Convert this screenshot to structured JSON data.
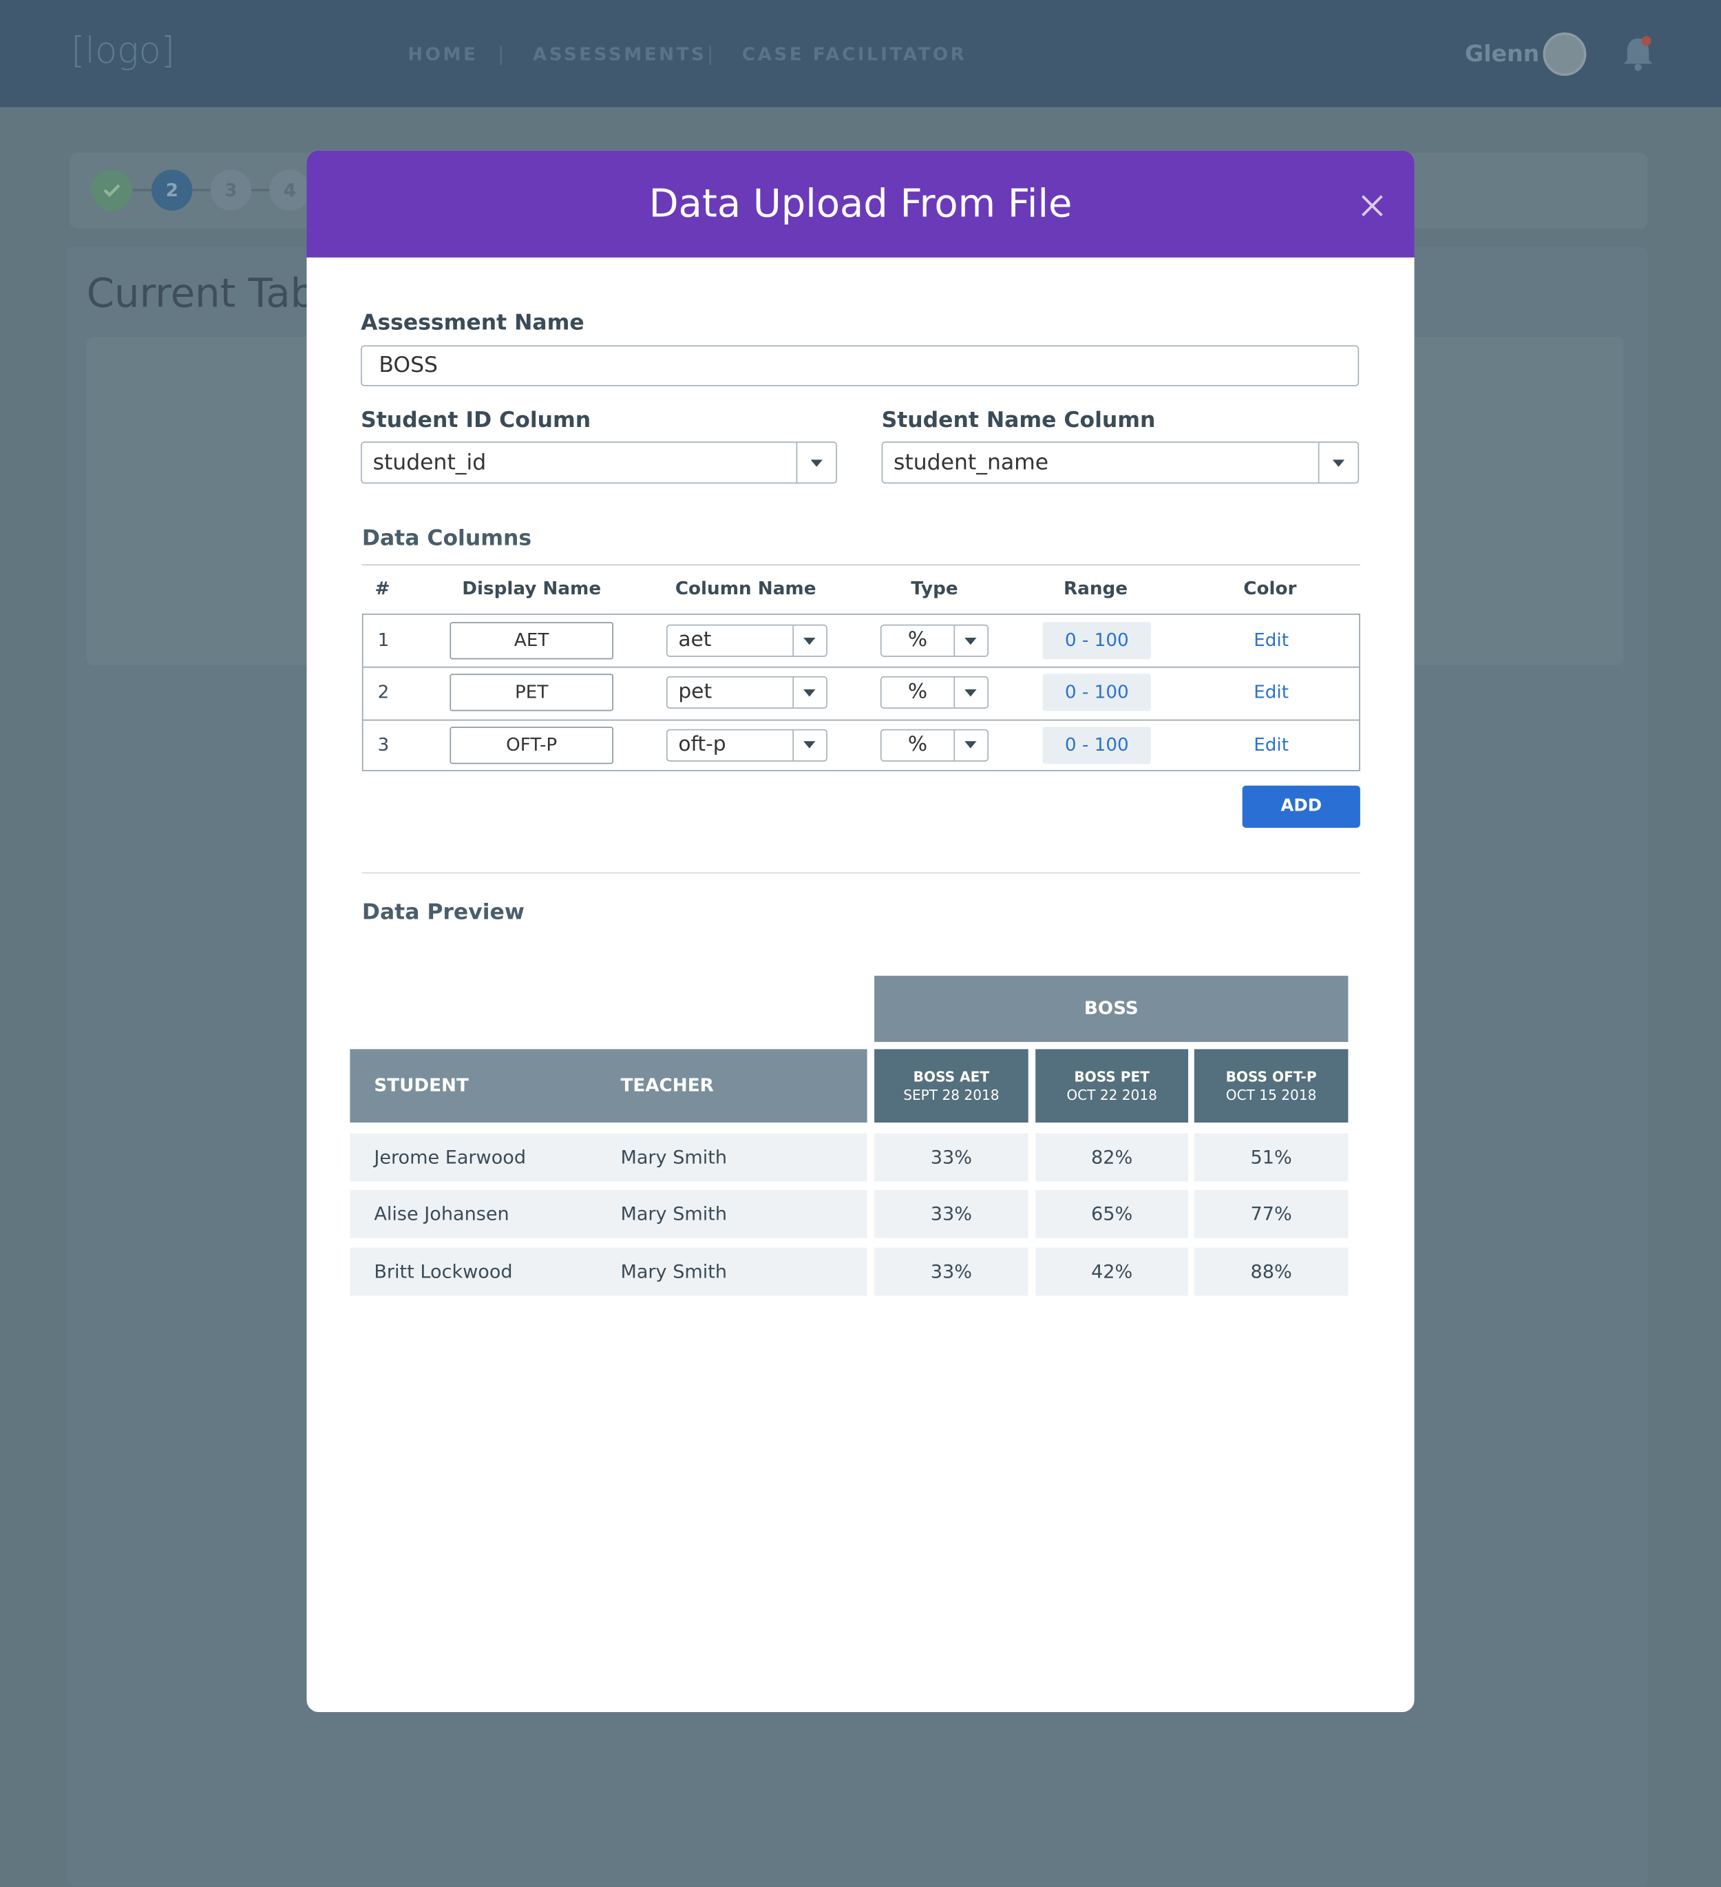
{
  "nav": {
    "logo": "[logo]",
    "links": [
      "HOME",
      "ASSESSMENTS",
      "CASE FACILITATOR"
    ],
    "user": "Glenn"
  },
  "background": {
    "steps": [
      "2",
      "3",
      "4"
    ],
    "title": "Current Tabl"
  },
  "modal": {
    "title": "Data Upload From File",
    "assessment_name_label": "Assessment Name",
    "assessment_name": "BOSS",
    "student_id_label": "Student ID Column",
    "student_id": "student_id",
    "student_name_label": "Student Name Column",
    "student_name": "student_name",
    "data_columns_title": "Data Columns",
    "column_headers": [
      "#",
      "Display Name",
      "Column Name",
      "Type",
      "Range",
      "Color"
    ],
    "column_rows": [
      [
        "1",
        "AET",
        "aet",
        "%",
        "0 - 100",
        "Edit"
      ],
      [
        "2",
        "PET",
        "pet",
        "%",
        "0 - 100",
        "Edit"
      ],
      [
        "3",
        "OFT-P",
        "oft-p",
        "%",
        "0 - 100",
        "Edit"
      ]
    ],
    "add_button": "ADD",
    "preview_title": "Data Preview",
    "preview": {
      "group": "BOSS",
      "headers": [
        "STUDENT",
        "TEACHER"
      ],
      "assessments": [
        {
          "name": "BOSS AET",
          "date": "SEPT 28 2018"
        },
        {
          "name": "BOSS PET",
          "date": "OCT 22 2018"
        },
        {
          "name": "BOSS OFT-P",
          "date": "OCT 15 2018"
        }
      ],
      "rows": [
        {
          "student": "Jerome Earwood",
          "teacher": "Mary Smith",
          "scores": [
            "33%",
            "82%",
            "51%"
          ]
        },
        {
          "student": "Alise Johansen",
          "teacher": "Mary Smith",
          "scores": [
            "33%",
            "65%",
            "77%"
          ]
        },
        {
          "student": "Britt Lockwood",
          "teacher": "Mary Smith",
          "scores": [
            "33%",
            "42%",
            "88%"
          ]
        }
      ]
    }
  }
}
